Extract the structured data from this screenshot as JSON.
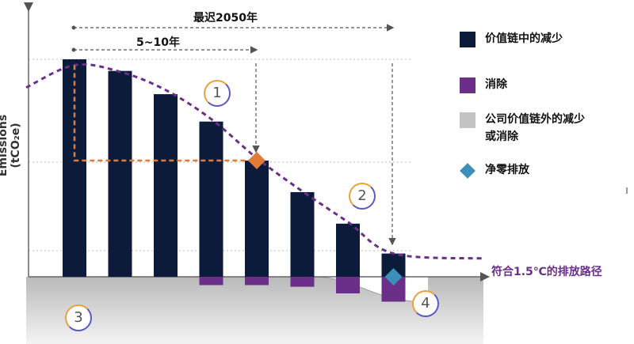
{
  "chart_data": {
    "type": "bar",
    "title": "",
    "xlabel": "",
    "ylabel": "Emissions (tCO₂e)",
    "categories": [
      "",
      "",
      "",
      "",
      "",
      "",
      "",
      ""
    ],
    "series": [
      {
        "name": "价值链中的减少",
        "values": [
          262,
          248,
          220,
          187,
          140,
          102,
          64,
          28
        ]
      },
      {
        "name": "消除",
        "values": [
          0,
          0,
          0,
          -10,
          -10,
          -12,
          -20,
          -30
        ]
      }
    ],
    "ylim": [
      -90,
      340
    ],
    "pathway_curve": [
      255,
      247,
      225,
      190,
      143,
      103,
      66,
      28
    ],
    "pathway_start": 228,
    "pathway_end": 22,
    "diamonds": [
      {
        "bar_index": 4,
        "value": 140,
        "color": "#e07b39"
      },
      {
        "bar_index": 7,
        "value": 0,
        "color": "#3b8fb8"
      }
    ],
    "grid": false
  },
  "legend": [
    {
      "label": "价值链中的减少",
      "color": "#0d1b3a",
      "shape": "square"
    },
    {
      "label": "消除",
      "color": "#6b2f8a",
      "shape": "square"
    },
    {
      "label": "公司价值链外的减少\n或消除",
      "color": "#c4c4c4",
      "shape": "square"
    },
    {
      "label": "净零排放",
      "color": "#3b8fb8",
      "shape": "diamond"
    }
  ],
  "annotations": {
    "span_long": "最迟2050年",
    "span_short": "5~10年",
    "pathway_label": "符合1.5℃的排放路径",
    "steps": [
      "1",
      "2",
      "3",
      "4"
    ]
  }
}
